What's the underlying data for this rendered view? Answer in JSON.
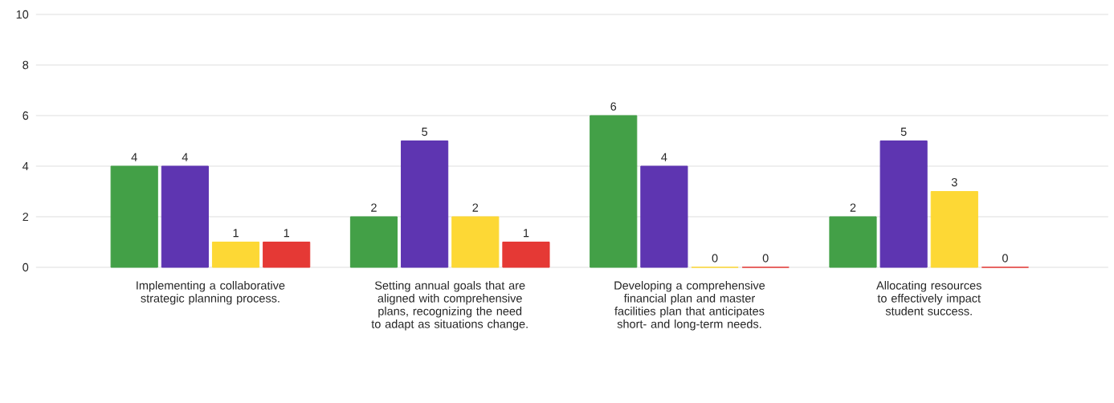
{
  "chart_data": {
    "type": "bar",
    "categories": [
      "Implementing a collaborative strategic planning process.",
      "Setting annual goals that are aligned with comprehensive plans, recognizing the need to adapt as situations change.",
      "Developing a comprehensive financial plan and master facilities plan that anticipates short- and long-term needs.",
      "Allocating resources to effectively impact student success."
    ],
    "series": [
      {
        "color": "#43a047",
        "values": [
          4,
          2,
          6,
          2
        ]
      },
      {
        "color": "#5e35b1",
        "values": [
          4,
          5,
          4,
          5
        ]
      },
      {
        "color": "#fdd835",
        "values": [
          1,
          2,
          0,
          3
        ]
      },
      {
        "color": "#e53935",
        "values": [
          1,
          1,
          0,
          0
        ]
      }
    ],
    "ylim": [
      0,
      10
    ],
    "yticks": [
      0,
      2,
      4,
      6,
      8,
      10
    ],
    "grid": "y",
    "data_labels": true
  }
}
